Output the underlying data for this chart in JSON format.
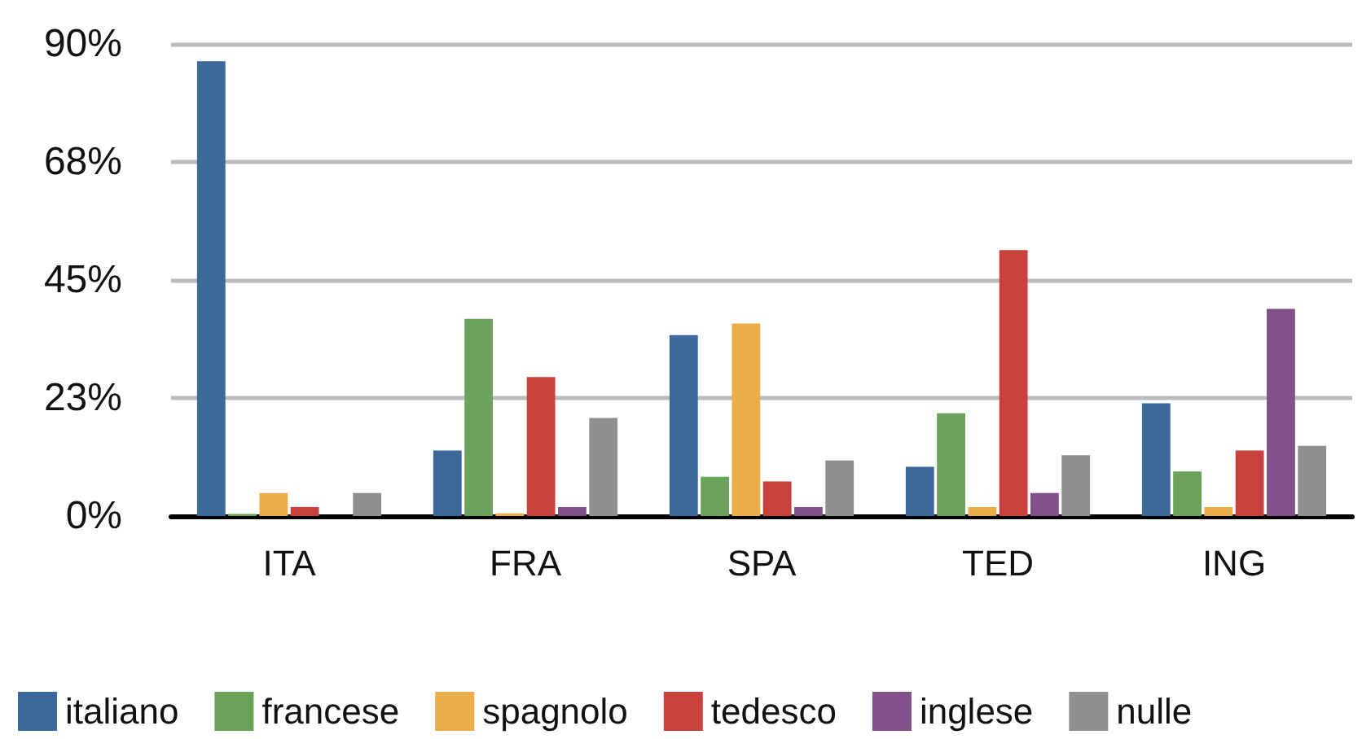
{
  "chart_data": {
    "type": "bar",
    "categories": [
      "ITA",
      "FRA",
      "SPA",
      "TED",
      "ING"
    ],
    "series": [
      {
        "name": "italiano",
        "color": "#3b6a9a",
        "values": [
          86.7,
          12.5,
          34.5,
          9.4,
          21.5
        ]
      },
      {
        "name": "francese",
        "color": "#6ca35a",
        "values": [
          0.4,
          37.6,
          7.5,
          19.6,
          8.5
        ]
      },
      {
        "name": "spagnolo",
        "color": "#ebae4b",
        "values": [
          4.4,
          0.5,
          36.7,
          1.7,
          1.7
        ]
      },
      {
        "name": "tedesco",
        "color": "#c9413d",
        "values": [
          1.7,
          26.5,
          6.6,
          50.7,
          12.5
        ]
      },
      {
        "name": "inglese",
        "color": "#82508a",
        "values": [
          0,
          1.7,
          1.7,
          4.4,
          39.5
        ]
      },
      {
        "name": "nulle",
        "color": "#8f908f",
        "values": [
          4.4,
          18.7,
          10.6,
          11.6,
          13.4
        ]
      }
    ],
    "ylim": [
      0,
      90
    ],
    "yticks": [
      {
        "value": 0,
        "label": "0%"
      },
      {
        "value": 22.5,
        "label": "23%"
      },
      {
        "value": 45,
        "label": "45%"
      },
      {
        "value": 67.5,
        "label": "68%"
      },
      {
        "value": 90,
        "label": "90%"
      }
    ],
    "grid": "y",
    "legend": "bottom"
  }
}
